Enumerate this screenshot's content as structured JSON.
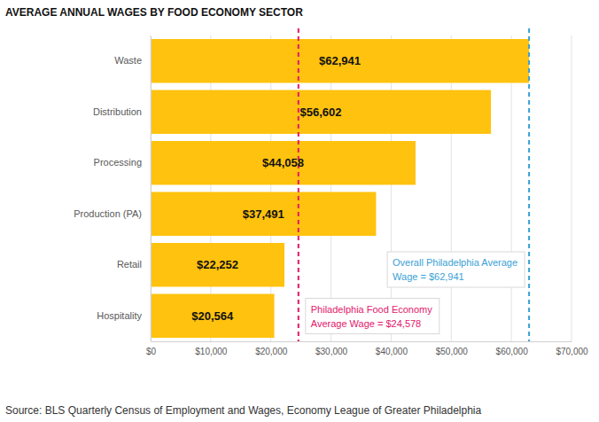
{
  "chart_data": {
    "type": "bar",
    "orientation": "horizontal",
    "title": "AVERAGE ANNUAL WAGES BY FOOD ECONOMY SECTOR",
    "categories": [
      "Waste",
      "Distribution",
      "Processing",
      "Production (PA)",
      "Retail",
      "Hospitality"
    ],
    "values": [
      62941,
      56602,
      44058,
      37491,
      22252,
      20564
    ],
    "value_labels": [
      "$62,941",
      "$56,602",
      "$44,058",
      "$37,491",
      "$22,252",
      "$20,564"
    ],
    "data_labels": true,
    "color": "#ffc20e",
    "grid": true,
    "xlim": [
      0,
      70000
    ],
    "xticks": [
      {
        "value": 0,
        "label": "$0"
      },
      {
        "value": 10000,
        "label": "$10,000"
      },
      {
        "value": 20000,
        "label": "$20,000"
      },
      {
        "value": 30000,
        "label": "$30,000"
      },
      {
        "value": 40000,
        "label": "$40,000"
      },
      {
        "value": 50000,
        "label": "$50,000"
      },
      {
        "value": 60000,
        "label": "$60,000"
      },
      {
        "value": 70000,
        "label": "$70,000"
      }
    ],
    "annotations": [
      {
        "lines": [
          "Overall Philadelphia Average",
          "Wage = $62,941"
        ],
        "value": 62941,
        "color": "#3a9fd6"
      },
      {
        "lines": [
          "Philadelphia Food Economy",
          "Average Wage = $24,578"
        ],
        "value": 24578,
        "color": "#e3176b"
      }
    ],
    "source": "Source: BLS Quarterly Census of Employment and Wages, Economy League of Greater Philadelphia"
  }
}
